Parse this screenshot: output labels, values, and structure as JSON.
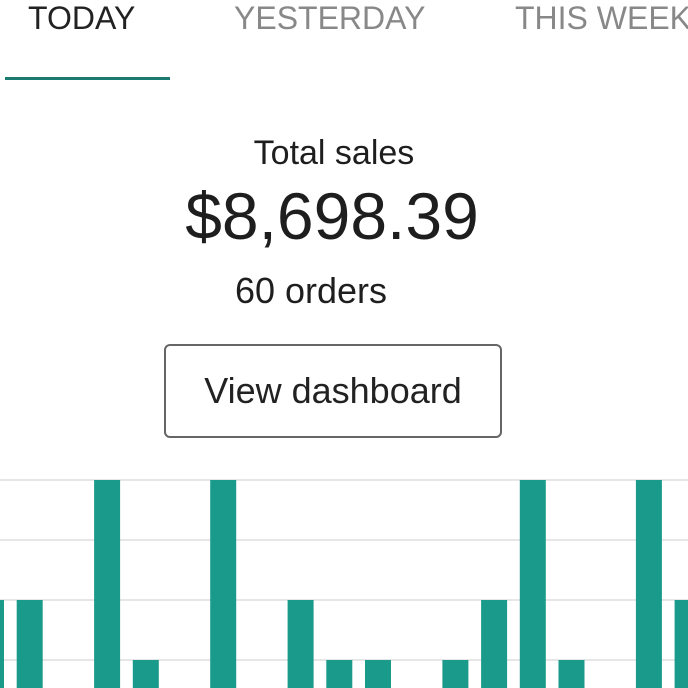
{
  "tabs": [
    "TODAY",
    "YESTERDAY",
    "THIS WEEK"
  ],
  "summary": {
    "label": "Total sales",
    "amount": "$8,698.39",
    "orders": "60 orders",
    "button": "View dashboard"
  },
  "chart_data": {
    "type": "bar",
    "categories": [
      null,
      null,
      null,
      null,
      null,
      null,
      null,
      null,
      null,
      null,
      null,
      null,
      null,
      null,
      null,
      null,
      null,
      null,
      null
    ],
    "values": [
      2,
      2,
      0,
      4,
      1,
      0,
      4,
      0,
      2,
      1,
      1,
      0,
      1,
      2,
      4,
      1,
      0,
      4,
      2
    ],
    "color": "#1a9a8b",
    "ylim": [
      0,
      4
    ],
    "yticks": [
      1,
      2,
      3,
      4
    ],
    "grid": true
  }
}
